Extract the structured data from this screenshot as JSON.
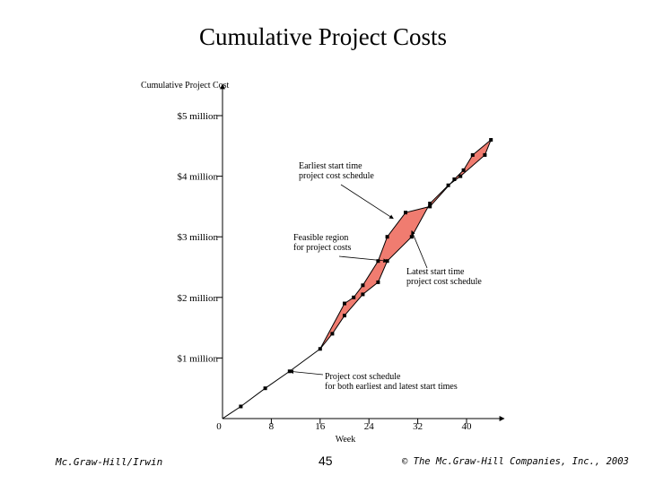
{
  "slide": {
    "title": "Cumulative Project Costs",
    "footer_left": "Mc.Graw-Hill/Irwin",
    "footer_page": "45",
    "footer_right": "© The Mc.Graw-Hill Companies, Inc., 2003"
  },
  "colors": {
    "feasible_fill": "#f07c70",
    "line": "#000000"
  },
  "chart_data": {
    "type": "line",
    "title": "",
    "ylabel": "Cumulative Project Cost",
    "xlabel": "Week",
    "xlim": [
      0,
      47
    ],
    "ylim": [
      0,
      5.6
    ],
    "x_ticks": [
      0,
      8,
      16,
      24,
      32,
      40
    ],
    "y_ticks": [
      {
        "value": 1,
        "label": "$1 million"
      },
      {
        "value": 2,
        "label": "$2 million"
      },
      {
        "value": 3,
        "label": "$3 million"
      },
      {
        "value": 4,
        "label": "$4 million"
      },
      {
        "value": 5,
        "label": "$5 million"
      }
    ],
    "common_segment": [
      [
        0,
        0
      ],
      [
        3,
        0.2
      ],
      [
        7,
        0.5
      ],
      [
        11,
        0.78
      ],
      [
        16,
        1.15
      ]
    ],
    "series": [
      {
        "name": "Earliest start time project cost schedule",
        "points": [
          [
            16,
            1.15
          ],
          [
            20,
            1.9
          ],
          [
            21.5,
            2.0
          ],
          [
            23,
            2.2
          ],
          [
            25.5,
            2.6
          ],
          [
            27,
            3.0
          ],
          [
            30,
            3.4
          ],
          [
            34,
            3.5
          ],
          [
            38,
            3.95
          ],
          [
            39.5,
            4.1
          ],
          [
            41,
            4.35
          ],
          [
            44,
            4.6
          ]
        ]
      },
      {
        "name": "Latest start time project cost schedule",
        "points": [
          [
            16,
            1.15
          ],
          [
            18,
            1.4
          ],
          [
            20,
            1.7
          ],
          [
            23,
            2.05
          ],
          [
            25.5,
            2.25
          ],
          [
            27,
            2.6
          ],
          [
            31,
            3.0
          ],
          [
            34,
            3.55
          ],
          [
            37,
            3.85
          ],
          [
            39,
            4.0
          ],
          [
            43,
            4.35
          ],
          [
            44,
            4.6
          ]
        ]
      }
    ],
    "annotations": [
      {
        "lines": [
          "Earliest start time",
          "project cost schedule"
        ],
        "target": [
          28,
          3.3
        ]
      },
      {
        "lines": [
          "Feasible region",
          "for project costs"
        ],
        "target": [
          27,
          2.6
        ]
      },
      {
        "lines": [
          "Latest start time",
          "project cost schedule"
        ],
        "target": [
          31,
          3.1
        ]
      },
      {
        "lines": [
          "Project cost schedule",
          "for both earliest and latest start times"
        ],
        "target": [
          11,
          0.78
        ]
      }
    ]
  }
}
